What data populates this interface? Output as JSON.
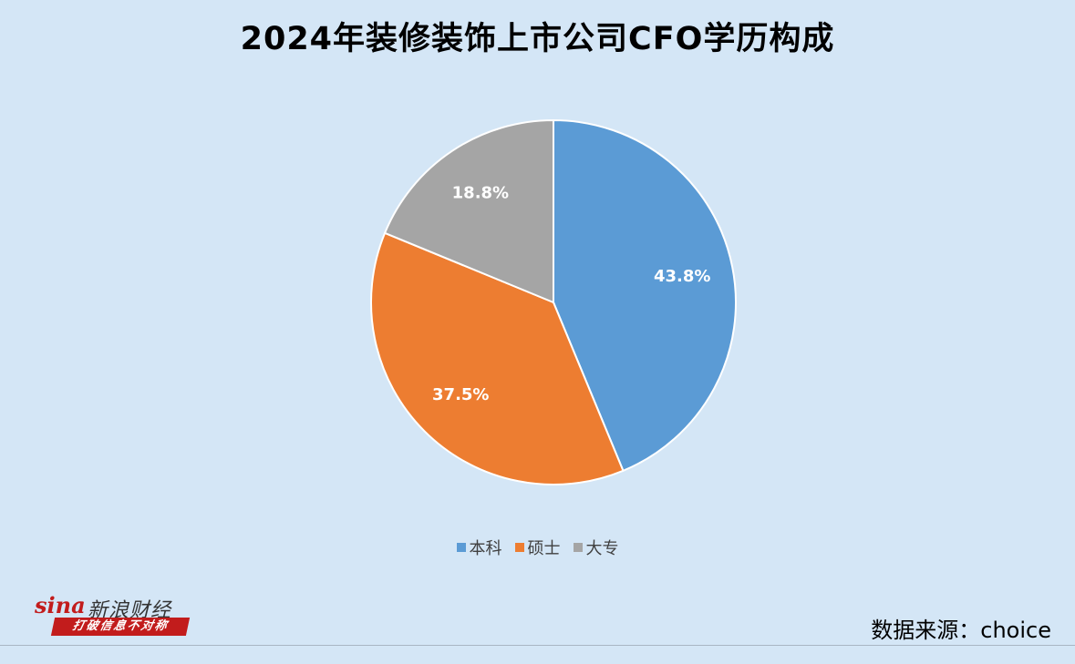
{
  "chart_data": {
    "type": "pie",
    "title": "2024年装修装饰上市公司CFO学历构成",
    "categories": [
      "本科",
      "硕士",
      "大专"
    ],
    "values": [
      43.8,
      37.5,
      18.8
    ],
    "data_labels": [
      "43.8%",
      "37.5%",
      "18.8%"
    ],
    "colors": [
      "#5b9bd5",
      "#ed7d31",
      "#a5a5a5"
    ],
    "legend_position": "bottom"
  },
  "logo": {
    "brand": "sina",
    "name": "新浪财经",
    "slogan": "打破信息不对称"
  },
  "source": "数据来源：choice"
}
